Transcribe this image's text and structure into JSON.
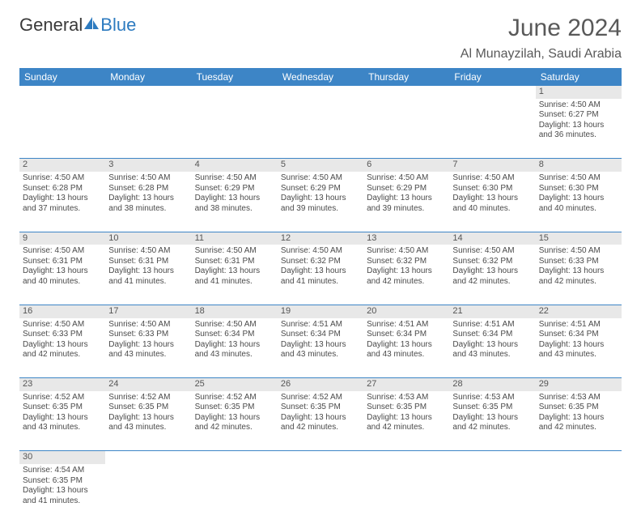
{
  "colors": {
    "header_bg": "#3d85c6",
    "header_text": "#ffffff",
    "daynum_bg": "#e8e8e8",
    "cell_border": "#3d85c6",
    "body_text": "#4a4a4a",
    "title_text": "#595959",
    "logo_gray": "#3a3a3a",
    "logo_blue": "#2d7bc0"
  },
  "logo": {
    "text_gray": "General",
    "text_blue": "Blue"
  },
  "title": "June 2024",
  "location": "Al Munayzilah, Saudi Arabia",
  "weekdays": [
    "Sunday",
    "Monday",
    "Tuesday",
    "Wednesday",
    "Thursday",
    "Friday",
    "Saturday"
  ],
  "weeks": [
    {
      "nums": [
        "",
        "",
        "",
        "",
        "",
        "",
        "1"
      ],
      "cells": [
        null,
        null,
        null,
        null,
        null,
        null,
        {
          "sunrise": "Sunrise: 4:50 AM",
          "sunset": "Sunset: 6:27 PM",
          "day1": "Daylight: 13 hours",
          "day2": "and 36 minutes."
        }
      ]
    },
    {
      "nums": [
        "2",
        "3",
        "4",
        "5",
        "6",
        "7",
        "8"
      ],
      "cells": [
        {
          "sunrise": "Sunrise: 4:50 AM",
          "sunset": "Sunset: 6:28 PM",
          "day1": "Daylight: 13 hours",
          "day2": "and 37 minutes."
        },
        {
          "sunrise": "Sunrise: 4:50 AM",
          "sunset": "Sunset: 6:28 PM",
          "day1": "Daylight: 13 hours",
          "day2": "and 38 minutes."
        },
        {
          "sunrise": "Sunrise: 4:50 AM",
          "sunset": "Sunset: 6:29 PM",
          "day1": "Daylight: 13 hours",
          "day2": "and 38 minutes."
        },
        {
          "sunrise": "Sunrise: 4:50 AM",
          "sunset": "Sunset: 6:29 PM",
          "day1": "Daylight: 13 hours",
          "day2": "and 39 minutes."
        },
        {
          "sunrise": "Sunrise: 4:50 AM",
          "sunset": "Sunset: 6:29 PM",
          "day1": "Daylight: 13 hours",
          "day2": "and 39 minutes."
        },
        {
          "sunrise": "Sunrise: 4:50 AM",
          "sunset": "Sunset: 6:30 PM",
          "day1": "Daylight: 13 hours",
          "day2": "and 40 minutes."
        },
        {
          "sunrise": "Sunrise: 4:50 AM",
          "sunset": "Sunset: 6:30 PM",
          "day1": "Daylight: 13 hours",
          "day2": "and 40 minutes."
        }
      ]
    },
    {
      "nums": [
        "9",
        "10",
        "11",
        "12",
        "13",
        "14",
        "15"
      ],
      "cells": [
        {
          "sunrise": "Sunrise: 4:50 AM",
          "sunset": "Sunset: 6:31 PM",
          "day1": "Daylight: 13 hours",
          "day2": "and 40 minutes."
        },
        {
          "sunrise": "Sunrise: 4:50 AM",
          "sunset": "Sunset: 6:31 PM",
          "day1": "Daylight: 13 hours",
          "day2": "and 41 minutes."
        },
        {
          "sunrise": "Sunrise: 4:50 AM",
          "sunset": "Sunset: 6:31 PM",
          "day1": "Daylight: 13 hours",
          "day2": "and 41 minutes."
        },
        {
          "sunrise": "Sunrise: 4:50 AM",
          "sunset": "Sunset: 6:32 PM",
          "day1": "Daylight: 13 hours",
          "day2": "and 41 minutes."
        },
        {
          "sunrise": "Sunrise: 4:50 AM",
          "sunset": "Sunset: 6:32 PM",
          "day1": "Daylight: 13 hours",
          "day2": "and 42 minutes."
        },
        {
          "sunrise": "Sunrise: 4:50 AM",
          "sunset": "Sunset: 6:32 PM",
          "day1": "Daylight: 13 hours",
          "day2": "and 42 minutes."
        },
        {
          "sunrise": "Sunrise: 4:50 AM",
          "sunset": "Sunset: 6:33 PM",
          "day1": "Daylight: 13 hours",
          "day2": "and 42 minutes."
        }
      ]
    },
    {
      "nums": [
        "16",
        "17",
        "18",
        "19",
        "20",
        "21",
        "22"
      ],
      "cells": [
        {
          "sunrise": "Sunrise: 4:50 AM",
          "sunset": "Sunset: 6:33 PM",
          "day1": "Daylight: 13 hours",
          "day2": "and 42 minutes."
        },
        {
          "sunrise": "Sunrise: 4:50 AM",
          "sunset": "Sunset: 6:33 PM",
          "day1": "Daylight: 13 hours",
          "day2": "and 43 minutes."
        },
        {
          "sunrise": "Sunrise: 4:50 AM",
          "sunset": "Sunset: 6:34 PM",
          "day1": "Daylight: 13 hours",
          "day2": "and 43 minutes."
        },
        {
          "sunrise": "Sunrise: 4:51 AM",
          "sunset": "Sunset: 6:34 PM",
          "day1": "Daylight: 13 hours",
          "day2": "and 43 minutes."
        },
        {
          "sunrise": "Sunrise: 4:51 AM",
          "sunset": "Sunset: 6:34 PM",
          "day1": "Daylight: 13 hours",
          "day2": "and 43 minutes."
        },
        {
          "sunrise": "Sunrise: 4:51 AM",
          "sunset": "Sunset: 6:34 PM",
          "day1": "Daylight: 13 hours",
          "day2": "and 43 minutes."
        },
        {
          "sunrise": "Sunrise: 4:51 AM",
          "sunset": "Sunset: 6:34 PM",
          "day1": "Daylight: 13 hours",
          "day2": "and 43 minutes."
        }
      ]
    },
    {
      "nums": [
        "23",
        "24",
        "25",
        "26",
        "27",
        "28",
        "29"
      ],
      "cells": [
        {
          "sunrise": "Sunrise: 4:52 AM",
          "sunset": "Sunset: 6:35 PM",
          "day1": "Daylight: 13 hours",
          "day2": "and 43 minutes."
        },
        {
          "sunrise": "Sunrise: 4:52 AM",
          "sunset": "Sunset: 6:35 PM",
          "day1": "Daylight: 13 hours",
          "day2": "and 43 minutes."
        },
        {
          "sunrise": "Sunrise: 4:52 AM",
          "sunset": "Sunset: 6:35 PM",
          "day1": "Daylight: 13 hours",
          "day2": "and 42 minutes."
        },
        {
          "sunrise": "Sunrise: 4:52 AM",
          "sunset": "Sunset: 6:35 PM",
          "day1": "Daylight: 13 hours",
          "day2": "and 42 minutes."
        },
        {
          "sunrise": "Sunrise: 4:53 AM",
          "sunset": "Sunset: 6:35 PM",
          "day1": "Daylight: 13 hours",
          "day2": "and 42 minutes."
        },
        {
          "sunrise": "Sunrise: 4:53 AM",
          "sunset": "Sunset: 6:35 PM",
          "day1": "Daylight: 13 hours",
          "day2": "and 42 minutes."
        },
        {
          "sunrise": "Sunrise: 4:53 AM",
          "sunset": "Sunset: 6:35 PM",
          "day1": "Daylight: 13 hours",
          "day2": "and 42 minutes."
        }
      ]
    },
    {
      "nums": [
        "30",
        "",
        "",
        "",
        "",
        "",
        ""
      ],
      "cells": [
        {
          "sunrise": "Sunrise: 4:54 AM",
          "sunset": "Sunset: 6:35 PM",
          "day1": "Daylight: 13 hours",
          "day2": "and 41 minutes."
        },
        null,
        null,
        null,
        null,
        null,
        null
      ]
    }
  ]
}
